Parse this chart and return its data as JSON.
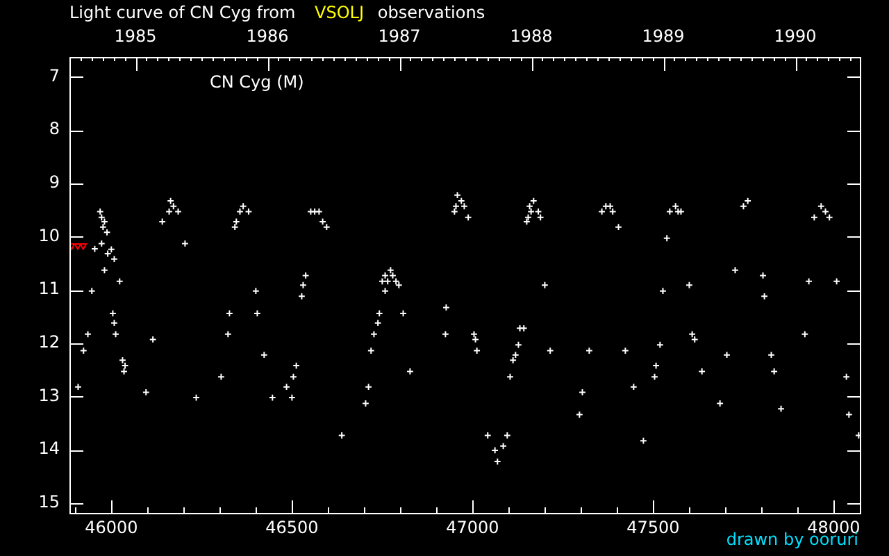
{
  "chart_data": {
    "type": "scatter",
    "title": "Light curve of CN Cyg from VSOLJ observations",
    "annotations": [
      "CN Cyg (M)",
      "drawn by ooruri"
    ],
    "xlim": [
      45884,
      48076
    ],
    "xticks": [
      {
        "value": 45900,
        "label": null
      },
      46000,
      {
        "value": 46100,
        "label": null
      },
      {
        "value": 46200,
        "label": null
      },
      {
        "value": 46300,
        "label": null
      },
      {
        "value": 46400,
        "label": null
      },
      46500,
      {
        "value": 46600,
        "label": null
      },
      {
        "value": 46700,
        "label": null
      },
      {
        "value": 46800,
        "label": null
      },
      {
        "value": 46900,
        "label": null
      },
      47000,
      {
        "value": 47100,
        "label": null
      },
      {
        "value": 47200,
        "label": null
      },
      {
        "value": 47300,
        "label": null
      },
      {
        "value": 47400,
        "label": null
      },
      47500,
      {
        "value": 47600,
        "label": null
      },
      {
        "value": 47700,
        "label": null
      },
      {
        "value": 47800,
        "label": null
      },
      {
        "value": 47900,
        "label": null
      },
      48000
    ],
    "x2lim": [
      1984.5,
      1990.5
    ],
    "x2ticks": [
      {
        "value": 1984.583,
        "label": null
      },
      {
        "value": 1984.667,
        "label": null
      },
      {
        "value": 1984.75,
        "label": null
      },
      {
        "value": 1984.833,
        "label": null
      },
      {
        "value": 1984.917,
        "label": null
      },
      1985,
      {
        "value": 1985.083,
        "label": null
      },
      {
        "value": 1985.167,
        "label": null
      },
      {
        "value": 1985.25,
        "label": null
      },
      {
        "value": 1985.333,
        "label": null
      },
      {
        "value": 1985.417,
        "label": null
      },
      {
        "value": 1985.5,
        "label": null
      },
      {
        "value": 1985.583,
        "label": null
      },
      {
        "value": 1985.667,
        "label": null
      },
      {
        "value": 1985.75,
        "label": null
      },
      {
        "value": 1985.833,
        "label": null
      },
      {
        "value": 1985.917,
        "label": null
      },
      1986,
      {
        "value": 1986.083,
        "label": null
      },
      {
        "value": 1986.167,
        "label": null
      },
      {
        "value": 1986.25,
        "label": null
      },
      {
        "value": 1986.333,
        "label": null
      },
      {
        "value": 1986.417,
        "label": null
      },
      {
        "value": 1986.5,
        "label": null
      },
      {
        "value": 1986.583,
        "label": null
      },
      {
        "value": 1986.667,
        "label": null
      },
      {
        "value": 1986.75,
        "label": null
      },
      {
        "value": 1986.833,
        "label": null
      },
      {
        "value": 1986.917,
        "label": null
      },
      1987,
      {
        "value": 1987.083,
        "label": null
      },
      {
        "value": 1987.167,
        "label": null
      },
      {
        "value": 1987.25,
        "label": null
      },
      {
        "value": 1987.333,
        "label": null
      },
      {
        "value": 1987.417,
        "label": null
      },
      {
        "value": 1987.5,
        "label": null
      },
      {
        "value": 1987.583,
        "label": null
      },
      {
        "value": 1987.667,
        "label": null
      },
      {
        "value": 1987.75,
        "label": null
      },
      {
        "value": 1987.833,
        "label": null
      },
      {
        "value": 1987.917,
        "label": null
      },
      1988,
      {
        "value": 1988.083,
        "label": null
      },
      {
        "value": 1988.167,
        "label": null
      },
      {
        "value": 1988.25,
        "label": null
      },
      {
        "value": 1988.333,
        "label": null
      },
      {
        "value": 1988.417,
        "label": null
      },
      {
        "value": 1988.5,
        "label": null
      },
      {
        "value": 1988.583,
        "label": null
      },
      {
        "value": 1988.667,
        "label": null
      },
      {
        "value": 1988.75,
        "label": null
      },
      {
        "value": 1988.833,
        "label": null
      },
      {
        "value": 1988.917,
        "label": null
      },
      1989,
      {
        "value": 1989.083,
        "label": null
      },
      {
        "value": 1989.167,
        "label": null
      },
      {
        "value": 1989.25,
        "label": null
      },
      {
        "value": 1989.333,
        "label": null
      },
      {
        "value": 1989.417,
        "label": null
      },
      {
        "value": 1989.5,
        "label": null
      },
      {
        "value": 1989.583,
        "label": null
      },
      {
        "value": 1989.667,
        "label": null
      },
      {
        "value": 1989.75,
        "label": null
      },
      {
        "value": 1989.833,
        "label": null
      },
      {
        "value": 1989.917,
        "label": null
      },
      1990,
      {
        "value": 1990.083,
        "label": null
      },
      {
        "value": 1990.167,
        "label": null
      },
      {
        "value": 1990.25,
        "label": null
      },
      {
        "value": 1990.333,
        "label": null
      },
      {
        "value": 1990.417,
        "label": null
      }
    ],
    "ylim": [
      15.21,
      6.63
    ],
    "yticks": [
      7,
      8,
      9,
      10,
      11,
      12,
      13,
      14,
      15
    ],
    "marker": "cross",
    "series": [
      {
        "color": "#ffffff",
        "x": [
          45908,
          45923,
          45935,
          45946,
          45954,
          45969,
          45973,
          45973,
          45977,
          45981,
          45981,
          45988,
          45990,
          46000,
          46004,
          46008,
          46008,
          46012,
          46023,
          46031,
          46035,
          46038,
          46096,
          46115,
          46141,
          46160,
          46164,
          46172,
          46185,
          46204,
          46235,
          46304,
          46323,
          46327,
          46342,
          46346,
          46356,
          46365,
          46380,
          46400,
          46404,
          46423,
          46446,
          46485,
          46500,
          46504,
          46512,
          46527,
          46531,
          46538,
          46552,
          46563,
          46575,
          46585,
          46596,
          46638,
          46704,
          46712,
          46719,
          46727,
          46738,
          46742,
          46750,
          46758,
          46758,
          46765,
          46773,
          46779,
          46788,
          46796,
          46808,
          46827,
          46925,
          46927,
          46950,
          46954,
          46958,
          46969,
          46977,
          46988,
          47004,
          47008,
          47012,
          47042,
          47062,
          47069,
          47085,
          47096,
          47104,
          47112,
          47119,
          47127,
          47131,
          47142,
          47150,
          47154,
          47158,
          47162,
          47169,
          47182,
          47188,
          47200,
          47215,
          47296,
          47304,
          47323,
          47358,
          47369,
          47381,
          47388,
          47404,
          47423,
          47446,
          47473,
          47504,
          47508,
          47519,
          47527,
          47538,
          47546,
          47562,
          47569,
          47577,
          47600,
          47608,
          47615,
          47635,
          47685,
          47704,
          47727,
          47750,
          47762,
          47804,
          47808,
          47827,
          47835,
          47854,
          47920,
          47931,
          47946,
          47965,
          47977,
          47988,
          48008,
          48035,
          48042,
          48069
        ],
        "values": [
          12.82,
          12.14,
          11.83,
          11.02,
          10.23,
          9.53,
          9.64,
          10.13,
          9.82,
          9.72,
          10.63,
          9.92,
          10.32,
          10.24,
          11.44,
          10.42,
          11.62,
          11.83,
          10.84,
          12.32,
          12.53,
          12.42,
          12.92,
          11.93,
          9.72,
          9.53,
          9.33,
          9.43,
          9.53,
          10.13,
          13.02,
          12.63,
          11.83,
          11.44,
          9.82,
          9.72,
          9.53,
          9.43,
          9.53,
          11.02,
          11.44,
          12.22,
          13.02,
          12.82,
          13.02,
          12.63,
          12.42,
          11.12,
          10.91,
          10.73,
          9.53,
          9.53,
          9.53,
          9.72,
          9.82,
          13.73,
          13.13,
          12.82,
          12.14,
          11.83,
          11.62,
          11.44,
          10.84,
          10.73,
          11.02,
          10.84,
          10.63,
          10.73,
          10.84,
          10.91,
          11.44,
          12.53,
          11.83,
          11.33,
          9.53,
          9.43,
          9.22,
          9.33,
          9.43,
          9.64,
          11.83,
          11.93,
          12.14,
          13.73,
          14.01,
          14.22,
          13.93,
          13.73,
          12.63,
          12.32,
          12.22,
          12.03,
          11.72,
          11.72,
          9.72,
          9.64,
          9.43,
          9.53,
          9.33,
          9.53,
          9.64,
          10.91,
          12.14,
          13.34,
          12.92,
          12.14,
          9.53,
          9.43,
          9.43,
          9.53,
          9.82,
          12.14,
          12.82,
          13.83,
          12.63,
          12.42,
          12.03,
          11.02,
          10.03,
          9.53,
          9.43,
          9.53,
          9.53,
          10.91,
          11.83,
          11.93,
          12.53,
          13.13,
          12.22,
          10.63,
          9.43,
          9.33,
          10.73,
          11.12,
          12.22,
          12.53,
          13.23,
          11.83,
          10.84,
          9.64,
          9.43,
          9.53,
          9.64,
          10.84,
          12.63,
          13.34,
          13.73
        ]
      },
      {
        "color": "#ff0000",
        "marker": "triangle",
        "x": [
          45890,
          45907,
          45922
        ],
        "values": [
          10.17,
          10.17,
          10.17
        ]
      }
    ]
  }
}
